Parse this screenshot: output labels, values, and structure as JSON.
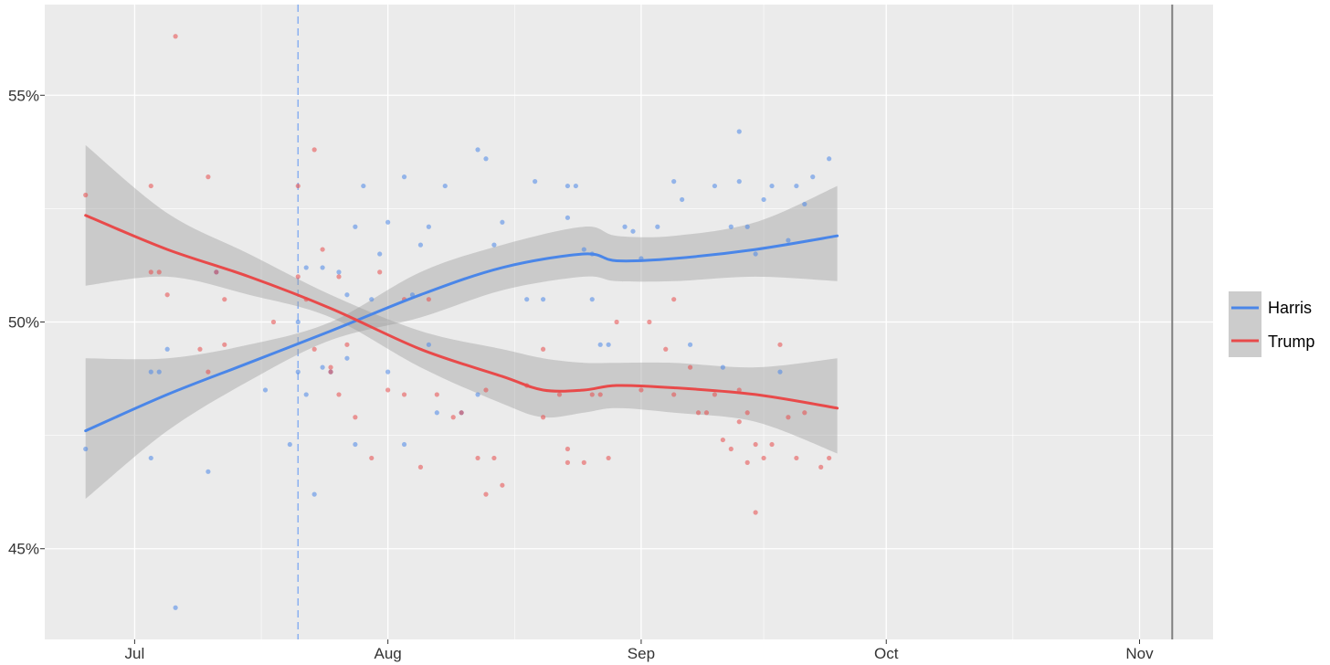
{
  "chart_data": {
    "type": "scatter",
    "title": "",
    "xlabel": "",
    "ylabel": "",
    "xlim": [
      "2024-06-20",
      "2024-11-10"
    ],
    "ylim": [
      43.0,
      57.0
    ],
    "grid": true,
    "legend_position": "right",
    "x_ticks": [
      {
        "date": "2024-07-01",
        "label": "Jul"
      },
      {
        "date": "2024-08-01",
        "label": "Aug"
      },
      {
        "date": "2024-09-01",
        "label": "Sep"
      },
      {
        "date": "2024-10-01",
        "label": "Oct"
      },
      {
        "date": "2024-11-01",
        "label": "Nov"
      }
    ],
    "y_ticks": [
      {
        "value": 45,
        "label": "45%"
      },
      {
        "value": 50,
        "label": "50%"
      },
      {
        "value": 55,
        "label": "55%"
      }
    ],
    "reference_lines": [
      {
        "date": "2024-07-21",
        "style": "dashed",
        "color": "#8ab0f0"
      },
      {
        "date": "2024-11-05",
        "style": "solid",
        "color": "#808080"
      }
    ],
    "series": [
      {
        "name": "Harris",
        "color": "#4a86e8",
        "trend": {
          "x": [
            "2024-06-25",
            "2024-07-05",
            "2024-07-15",
            "2024-07-25",
            "2024-08-05",
            "2024-08-15",
            "2024-08-25",
            "2024-08-29",
            "2024-09-05",
            "2024-09-15",
            "2024-09-25"
          ],
          "y": [
            47.6,
            48.4,
            49.1,
            49.8,
            50.6,
            51.2,
            51.5,
            51.35,
            51.4,
            51.6,
            51.9
          ],
          "ci_lower": [
            46.1,
            47.6,
            48.7,
            49.6,
            50.1,
            50.7,
            51.0,
            50.9,
            50.9,
            51.0,
            50.9
          ],
          "ci_upper": [
            49.2,
            49.2,
            49.5,
            50.0,
            51.1,
            51.7,
            52.1,
            51.9,
            51.9,
            52.2,
            53.0
          ]
        },
        "points": {
          "x": [
            "2024-06-25",
            "2024-07-03",
            "2024-07-03",
            "2024-07-04",
            "2024-07-05",
            "2024-07-06",
            "2024-07-10",
            "2024-07-11",
            "2024-07-17",
            "2024-07-20",
            "2024-07-21",
            "2024-07-21",
            "2024-07-22",
            "2024-07-22",
            "2024-07-23",
            "2024-07-24",
            "2024-07-24",
            "2024-07-25",
            "2024-07-26",
            "2024-07-27",
            "2024-07-27",
            "2024-07-28",
            "2024-07-28",
            "2024-07-29",
            "2024-07-30",
            "2024-07-31",
            "2024-08-01",
            "2024-08-01",
            "2024-08-03",
            "2024-08-03",
            "2024-08-04",
            "2024-08-05",
            "2024-08-06",
            "2024-08-06",
            "2024-08-07",
            "2024-08-08",
            "2024-08-10",
            "2024-08-12",
            "2024-08-12",
            "2024-08-13",
            "2024-08-14",
            "2024-08-15",
            "2024-08-18",
            "2024-08-19",
            "2024-08-20",
            "2024-08-23",
            "2024-08-23",
            "2024-08-24",
            "2024-08-25",
            "2024-08-26",
            "2024-08-26",
            "2024-08-27",
            "2024-08-28",
            "2024-08-30",
            "2024-08-31",
            "2024-09-01",
            "2024-09-03",
            "2024-09-05",
            "2024-09-06",
            "2024-09-07",
            "2024-09-10",
            "2024-09-11",
            "2024-09-12",
            "2024-09-13",
            "2024-09-13",
            "2024-09-14",
            "2024-09-15",
            "2024-09-16",
            "2024-09-17",
            "2024-09-18",
            "2024-09-19",
            "2024-09-20",
            "2024-09-21",
            "2024-09-22",
            "2024-09-24"
          ],
          "y": [
            47.2,
            48.9,
            47.0,
            48.9,
            49.4,
            43.7,
            46.7,
            51.1,
            48.5,
            47.3,
            50.0,
            48.9,
            51.2,
            48.4,
            46.2,
            51.2,
            49.0,
            48.9,
            51.1,
            50.6,
            49.2,
            52.1,
            47.3,
            53.0,
            50.5,
            51.5,
            52.2,
            48.9,
            53.2,
            47.3,
            50.6,
            51.7,
            52.1,
            49.5,
            48.0,
            53.0,
            48.0,
            53.8,
            48.4,
            53.6,
            51.7,
            52.2,
            50.5,
            53.1,
            50.5,
            53.0,
            52.3,
            53.0,
            51.6,
            50.5,
            51.5,
            49.5,
            49.5,
            52.1,
            52.0,
            51.4,
            52.1,
            53.1,
            52.7,
            49.5,
            53.0,
            49.0,
            52.1,
            54.2,
            53.1,
            52.1,
            51.5,
            52.7,
            53.0,
            48.9,
            51.8,
            53.0,
            52.6,
            53.2,
            53.6
          ]
        }
      },
      {
        "name": "Trump",
        "color": "#e84a4a",
        "trend": {
          "x": [
            "2024-06-25",
            "2024-07-05",
            "2024-07-15",
            "2024-07-25",
            "2024-08-05",
            "2024-08-15",
            "2024-08-20",
            "2024-08-25",
            "2024-08-29",
            "2024-09-05",
            "2024-09-15",
            "2024-09-25"
          ],
          "y": [
            52.35,
            51.6,
            51.0,
            50.3,
            49.4,
            48.8,
            48.5,
            48.5,
            48.6,
            48.55,
            48.4,
            48.1
          ],
          "ci_lower": [
            50.8,
            51.0,
            50.6,
            50.1,
            49.0,
            48.2,
            47.9,
            48.0,
            48.1,
            48.0,
            47.8,
            47.1
          ],
          "ci_upper": [
            53.9,
            52.4,
            51.5,
            50.6,
            49.8,
            49.4,
            49.2,
            49.1,
            49.1,
            49.1,
            49.0,
            49.2
          ]
        },
        "points": {
          "x": [
            "2024-06-25",
            "2024-07-03",
            "2024-07-03",
            "2024-07-04",
            "2024-07-05",
            "2024-07-06",
            "2024-07-09",
            "2024-07-10",
            "2024-07-10",
            "2024-07-11",
            "2024-07-12",
            "2024-07-12",
            "2024-07-18",
            "2024-07-21",
            "2024-07-21",
            "2024-07-22",
            "2024-07-23",
            "2024-07-23",
            "2024-07-24",
            "2024-07-25",
            "2024-07-25",
            "2024-07-26",
            "2024-07-26",
            "2024-07-27",
            "2024-07-28",
            "2024-07-30",
            "2024-07-31",
            "2024-08-01",
            "2024-08-03",
            "2024-08-03",
            "2024-08-05",
            "2024-08-06",
            "2024-08-07",
            "2024-08-09",
            "2024-08-10",
            "2024-08-12",
            "2024-08-13",
            "2024-08-13",
            "2024-08-14",
            "2024-08-15",
            "2024-08-18",
            "2024-08-20",
            "2024-08-20",
            "2024-08-22",
            "2024-08-23",
            "2024-08-23",
            "2024-08-25",
            "2024-08-26",
            "2024-08-27",
            "2024-08-28",
            "2024-08-29",
            "2024-09-01",
            "2024-09-02",
            "2024-09-04",
            "2024-09-05",
            "2024-09-05",
            "2024-09-07",
            "2024-09-08",
            "2024-09-09",
            "2024-09-10",
            "2024-09-11",
            "2024-09-12",
            "2024-09-13",
            "2024-09-13",
            "2024-09-14",
            "2024-09-14",
            "2024-09-15",
            "2024-09-15",
            "2024-09-16",
            "2024-09-17",
            "2024-09-18",
            "2024-09-19",
            "2024-09-20",
            "2024-09-21",
            "2024-09-23",
            "2024-09-24"
          ],
          "y": [
            52.8,
            53.0,
            51.1,
            51.1,
            50.6,
            56.3,
            49.4,
            53.2,
            48.9,
            51.1,
            49.5,
            50.5,
            50.0,
            53.0,
            51.0,
            50.5,
            53.8,
            49.4,
            51.6,
            48.9,
            49.0,
            48.4,
            51.0,
            49.5,
            47.9,
            47.0,
            51.1,
            48.5,
            50.5,
            48.4,
            46.8,
            50.5,
            48.4,
            47.9,
            48.0,
            47.0,
            48.5,
            46.2,
            47.0,
            46.4,
            48.6,
            49.4,
            47.9,
            48.4,
            47.2,
            46.9,
            46.9,
            48.4,
            48.4,
            47.0,
            50.0,
            48.5,
            50.0,
            49.4,
            50.5,
            48.4,
            49.0,
            48.0,
            48.0,
            48.4,
            47.4,
            47.2,
            47.8,
            48.5,
            48.0,
            46.9,
            47.3,
            45.8,
            47.0,
            47.3,
            49.5,
            47.9,
            47.0,
            48.0,
            46.8,
            47.0
          ]
        }
      }
    ]
  }
}
